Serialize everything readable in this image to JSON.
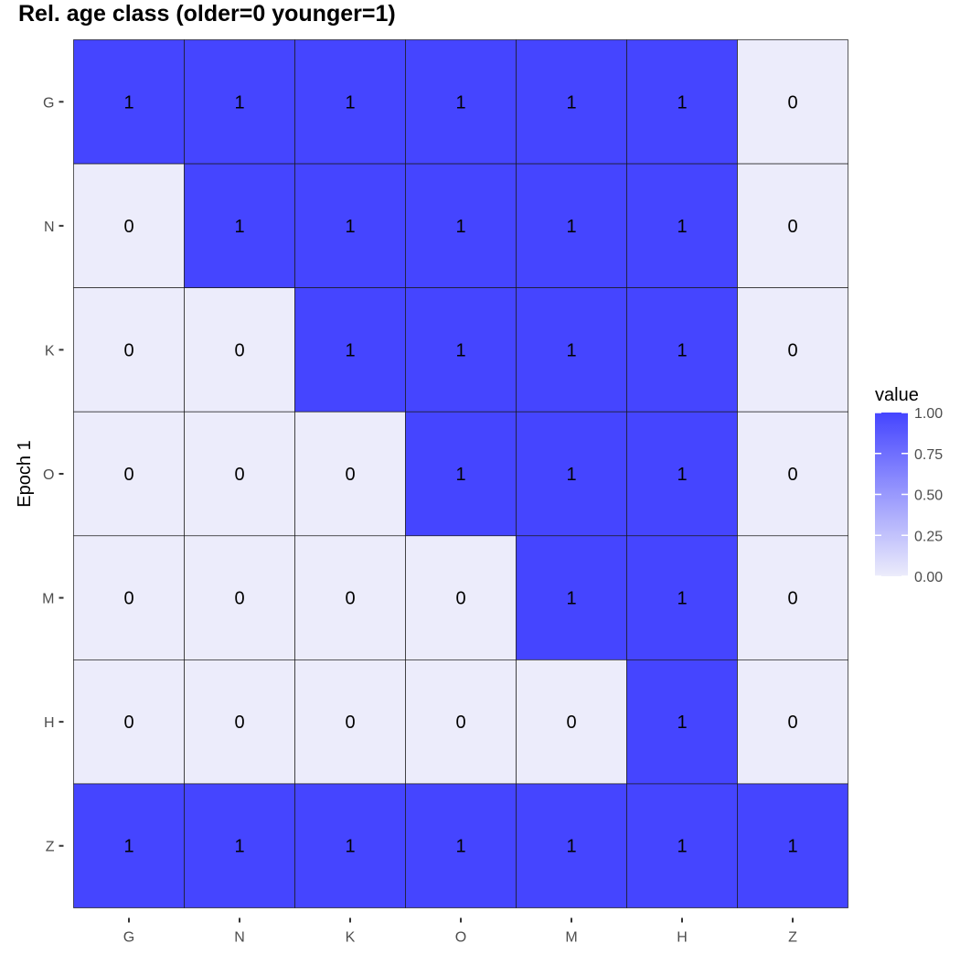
{
  "chart_data": {
    "type": "heatmap",
    "title": "Rel. age class (older=0 younger=1)",
    "xlabel": "",
    "ylabel": "Epoch 1",
    "x_categories": [
      "G",
      "N",
      "K",
      "O",
      "M",
      "H",
      "Z"
    ],
    "y_categories": [
      "G",
      "N",
      "K",
      "O",
      "M",
      "H",
      "Z"
    ],
    "values": [
      [
        1,
        1,
        1,
        1,
        1,
        1,
        0
      ],
      [
        0,
        1,
        1,
        1,
        1,
        1,
        0
      ],
      [
        0,
        0,
        1,
        1,
        1,
        1,
        0
      ],
      [
        0,
        0,
        0,
        1,
        1,
        1,
        0
      ],
      [
        0,
        0,
        0,
        0,
        1,
        1,
        0
      ],
      [
        0,
        0,
        0,
        0,
        0,
        1,
        0
      ],
      [
        1,
        1,
        1,
        1,
        1,
        1,
        1
      ]
    ],
    "color_scale": {
      "low": "#ececfb",
      "high": "#4545ff",
      "range": [
        0,
        1
      ]
    },
    "legend": {
      "title": "value",
      "placement": "right",
      "ticks": [
        "1.00",
        "0.75",
        "0.50",
        "0.25",
        "0.00"
      ],
      "tick_values": [
        1.0,
        0.75,
        0.5,
        0.25,
        0.0
      ]
    },
    "grid": false
  }
}
